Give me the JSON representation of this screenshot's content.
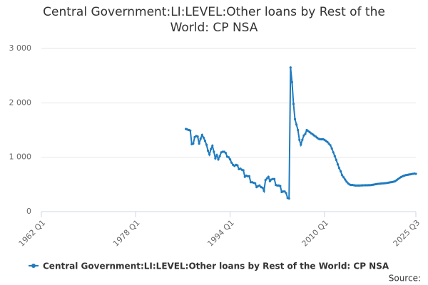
{
  "chart_data": {
    "type": "line",
    "title": "Central Government:LI:LEVEL:Other loans by Rest of the World: CP NSA",
    "source": "Source:",
    "categories": [
      "1962 Q1",
      null,
      null,
      null,
      null,
      null,
      null,
      null,
      null,
      null,
      null,
      null,
      null,
      null,
      null,
      null,
      null,
      null,
      null,
      null,
      null,
      null,
      null,
      null,
      null,
      null,
      null,
      null,
      null,
      null,
      null,
      null,
      null,
      null,
      null,
      null,
      null,
      null,
      null,
      null,
      null,
      null,
      null,
      null,
      null,
      null,
      null,
      null,
      null,
      null,
      null,
      null,
      null,
      null,
      null,
      null,
      null,
      null,
      null,
      null,
      null,
      null,
      null,
      null,
      "1978 Q1",
      null,
      null,
      null,
      null,
      null,
      null,
      null,
      null,
      null,
      null,
      null,
      null,
      null,
      null,
      null,
      null,
      null,
      null,
      null,
      null,
      null,
      null,
      null,
      null,
      null,
      null,
      null,
      null,
      null,
      null,
      null,
      null,
      null,
      null,
      null,
      null,
      null,
      null,
      null,
      null,
      null,
      null,
      null,
      null,
      null,
      null,
      null,
      null,
      null,
      null,
      null,
      null,
      null,
      null,
      null,
      null,
      null,
      null,
      null,
      null,
      null,
      null,
      null,
      "1994 Q1",
      null,
      null,
      null,
      null,
      null,
      null,
      null,
      null,
      null,
      null,
      null,
      null,
      null,
      null,
      null,
      null,
      null,
      null,
      null,
      null,
      null,
      null,
      null,
      null,
      null,
      null,
      null,
      null,
      null,
      null,
      null,
      null,
      null,
      null,
      null,
      null,
      null,
      null,
      null,
      null,
      null,
      null,
      null,
      null,
      null,
      null,
      null,
      null,
      null,
      null,
      null,
      null,
      null,
      null,
      null,
      null,
      null,
      null,
      null,
      null,
      null,
      null,
      null,
      "2010 Q1",
      null,
      null,
      null,
      null,
      null,
      null,
      null,
      null,
      null,
      null,
      null,
      null,
      null,
      null,
      null,
      null,
      null,
      null,
      null,
      null,
      null,
      null,
      null,
      null,
      null,
      null,
      null,
      null,
      null,
      null,
      null,
      null,
      null,
      null,
      null,
      null,
      null,
      null,
      null,
      null,
      null,
      null,
      null,
      null,
      null,
      null,
      null,
      null,
      null,
      null,
      null,
      null,
      null,
      null,
      null,
      null,
      null,
      null,
      null,
      null,
      null,
      "2025 Q3"
    ],
    "series": [
      {
        "name": "Central Government:LI:LEVEL:Other loans by Rest of the World: CP NSA",
        "color": "#1f7bbf",
        "values": [
          null,
          null,
          null,
          null,
          null,
          null,
          null,
          null,
          null,
          null,
          null,
          null,
          null,
          null,
          null,
          null,
          null,
          null,
          null,
          null,
          null,
          null,
          null,
          null,
          null,
          null,
          null,
          null,
          null,
          null,
          null,
          null,
          null,
          null,
          null,
          null,
          null,
          null,
          null,
          null,
          null,
          null,
          null,
          null,
          null,
          null,
          null,
          null,
          null,
          null,
          null,
          null,
          null,
          null,
          null,
          null,
          null,
          null,
          null,
          null,
          null,
          null,
          null,
          null,
          null,
          null,
          null,
          null,
          null,
          null,
          null,
          null,
          null,
          null,
          null,
          null,
          null,
          null,
          null,
          null,
          null,
          null,
          null,
          null,
          null,
          null,
          null,
          null,
          null,
          null,
          null,
          null,
          null,
          null,
          null,
          null,
          null,
          null,
          1520,
          1510,
          1500,
          1490,
          1240,
          1250,
          1370,
          1390,
          1380,
          1250,
          1340,
          1410,
          1360,
          1300,
          1230,
          1120,
          1050,
          1150,
          1210,
          1100,
          980,
          1040,
          960,
          1020,
          1090,
          1100,
          1100,
          1080,
          1010,
          1000,
          960,
          900,
          860,
          840,
          860,
          850,
          780,
          790,
          770,
          760,
          640,
          660,
          650,
          650,
          540,
          540,
          530,
          520,
          450,
          470,
          480,
          450,
          440,
          380,
          580,
          610,
          640,
          560,
          590,
          600,
          600,
          490,
          480,
          480,
          470,
          360,
          370,
          370,
          340,
          250,
          240,
          2650,
          2380,
          1980,
          1700,
          1600,
          1500,
          1320,
          1230,
          1320,
          1400,
          1430,
          1500,
          1480,
          1460,
          1440,
          1420,
          1400,
          1380,
          1360,
          1340,
          1330,
          1330,
          1330,
          1320,
          1300,
          1280,
          1250,
          1220,
          1160,
          1090,
          1020,
          950,
          870,
          800,
          740,
          670,
          630,
          590,
          550,
          520,
          500,
          490,
          490,
          485,
          480,
          480,
          480,
          480,
          482,
          483,
          484,
          485,
          485,
          486,
          487,
          490,
          495,
          500,
          505,
          510,
          512,
          515,
          518,
          520,
          522,
          525,
          530,
          535,
          540,
          545,
          550,
          560,
          580,
          600,
          620,
          635,
          650,
          660,
          670,
          675,
          680,
          685,
          690,
          695,
          700,
          695
        ]
      }
    ],
    "ylim": [
      0,
      3000
    ],
    "yticks": [
      0,
      {
        "value": 1000,
        "label": "1 000"
      },
      {
        "value": 2000,
        "label": "2 000"
      },
      {
        "value": 3000,
        "label": "3 000"
      }
    ],
    "grid": true
  }
}
